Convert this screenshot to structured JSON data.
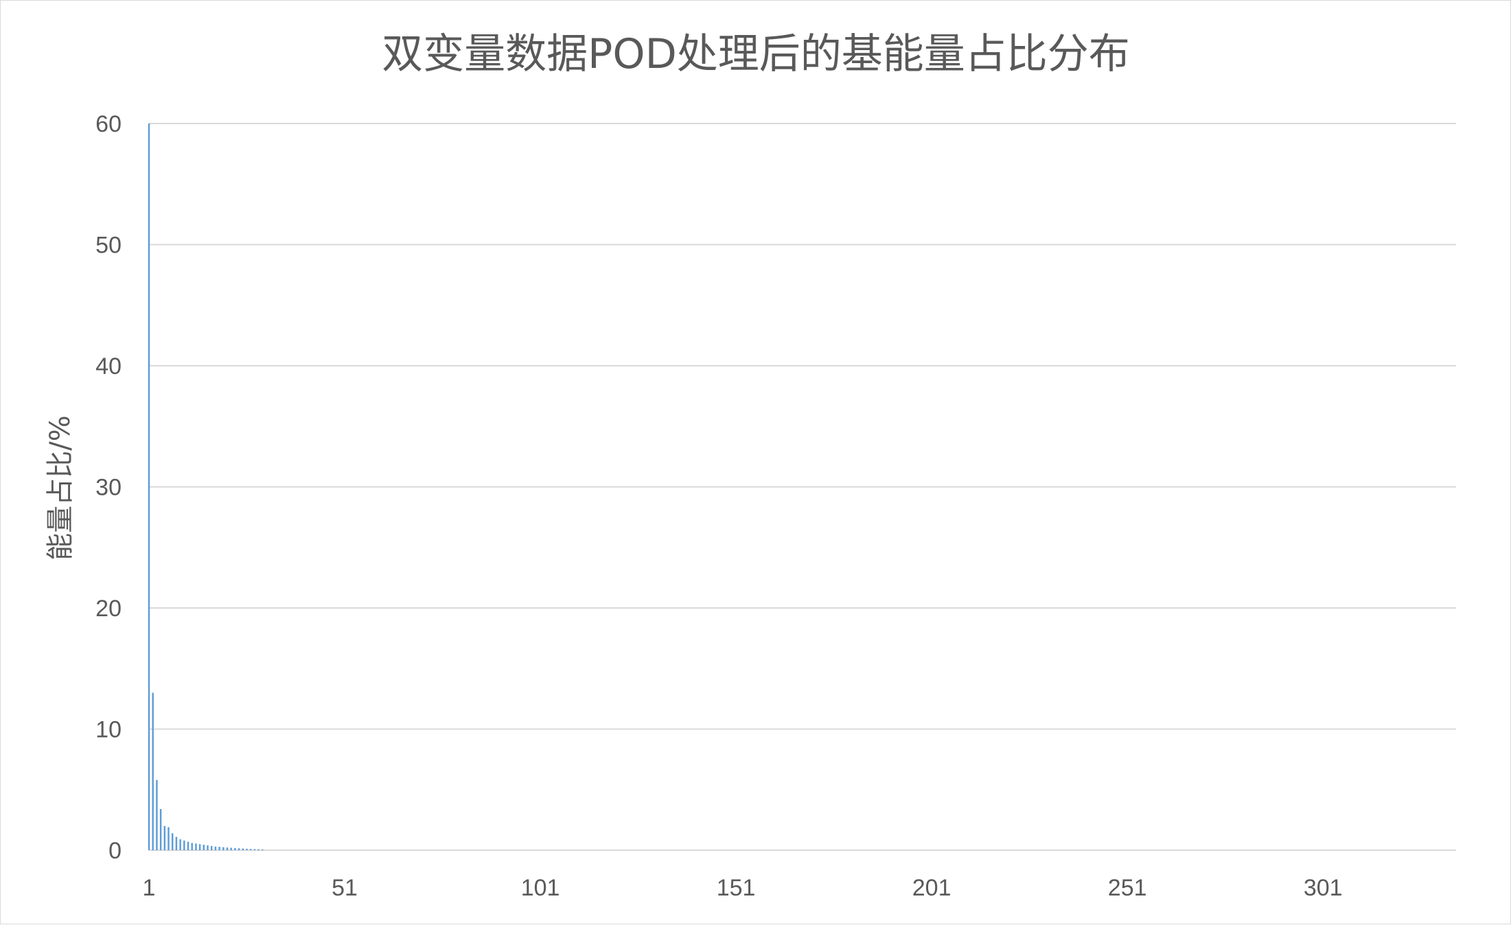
{
  "chart_data": {
    "type": "bar",
    "title": "双变量数据POD处理后的基能量占比分布",
    "xlabel": "",
    "ylabel": "能量占比/%",
    "x_tick_labels": [
      "1",
      "51",
      "101",
      "151",
      "201",
      "251",
      "301"
    ],
    "x_range": [
      1,
      335
    ],
    "ylim": [
      0,
      60
    ],
    "y_ticks": [
      0,
      10,
      20,
      30,
      40,
      50,
      60
    ],
    "grid": true,
    "legend": "none",
    "bar_color": "#5b9bd5",
    "x": [
      1,
      2,
      3,
      4,
      5,
      6,
      7,
      8,
      9,
      10,
      11,
      12,
      13,
      14,
      15,
      16,
      17,
      18,
      19,
      20,
      21,
      22,
      23,
      24,
      25,
      26,
      27,
      28,
      29,
      30
    ],
    "values": [
      60.0,
      13.0,
      5.8,
      3.4,
      2.0,
      1.9,
      1.4,
      1.1,
      0.9,
      0.8,
      0.7,
      0.6,
      0.55,
      0.5,
      0.45,
      0.4,
      0.35,
      0.3,
      0.28,
      0.25,
      0.22,
      0.2,
      0.18,
      0.16,
      0.14,
      0.12,
      0.1,
      0.09,
      0.08,
      0.07
    ]
  }
}
